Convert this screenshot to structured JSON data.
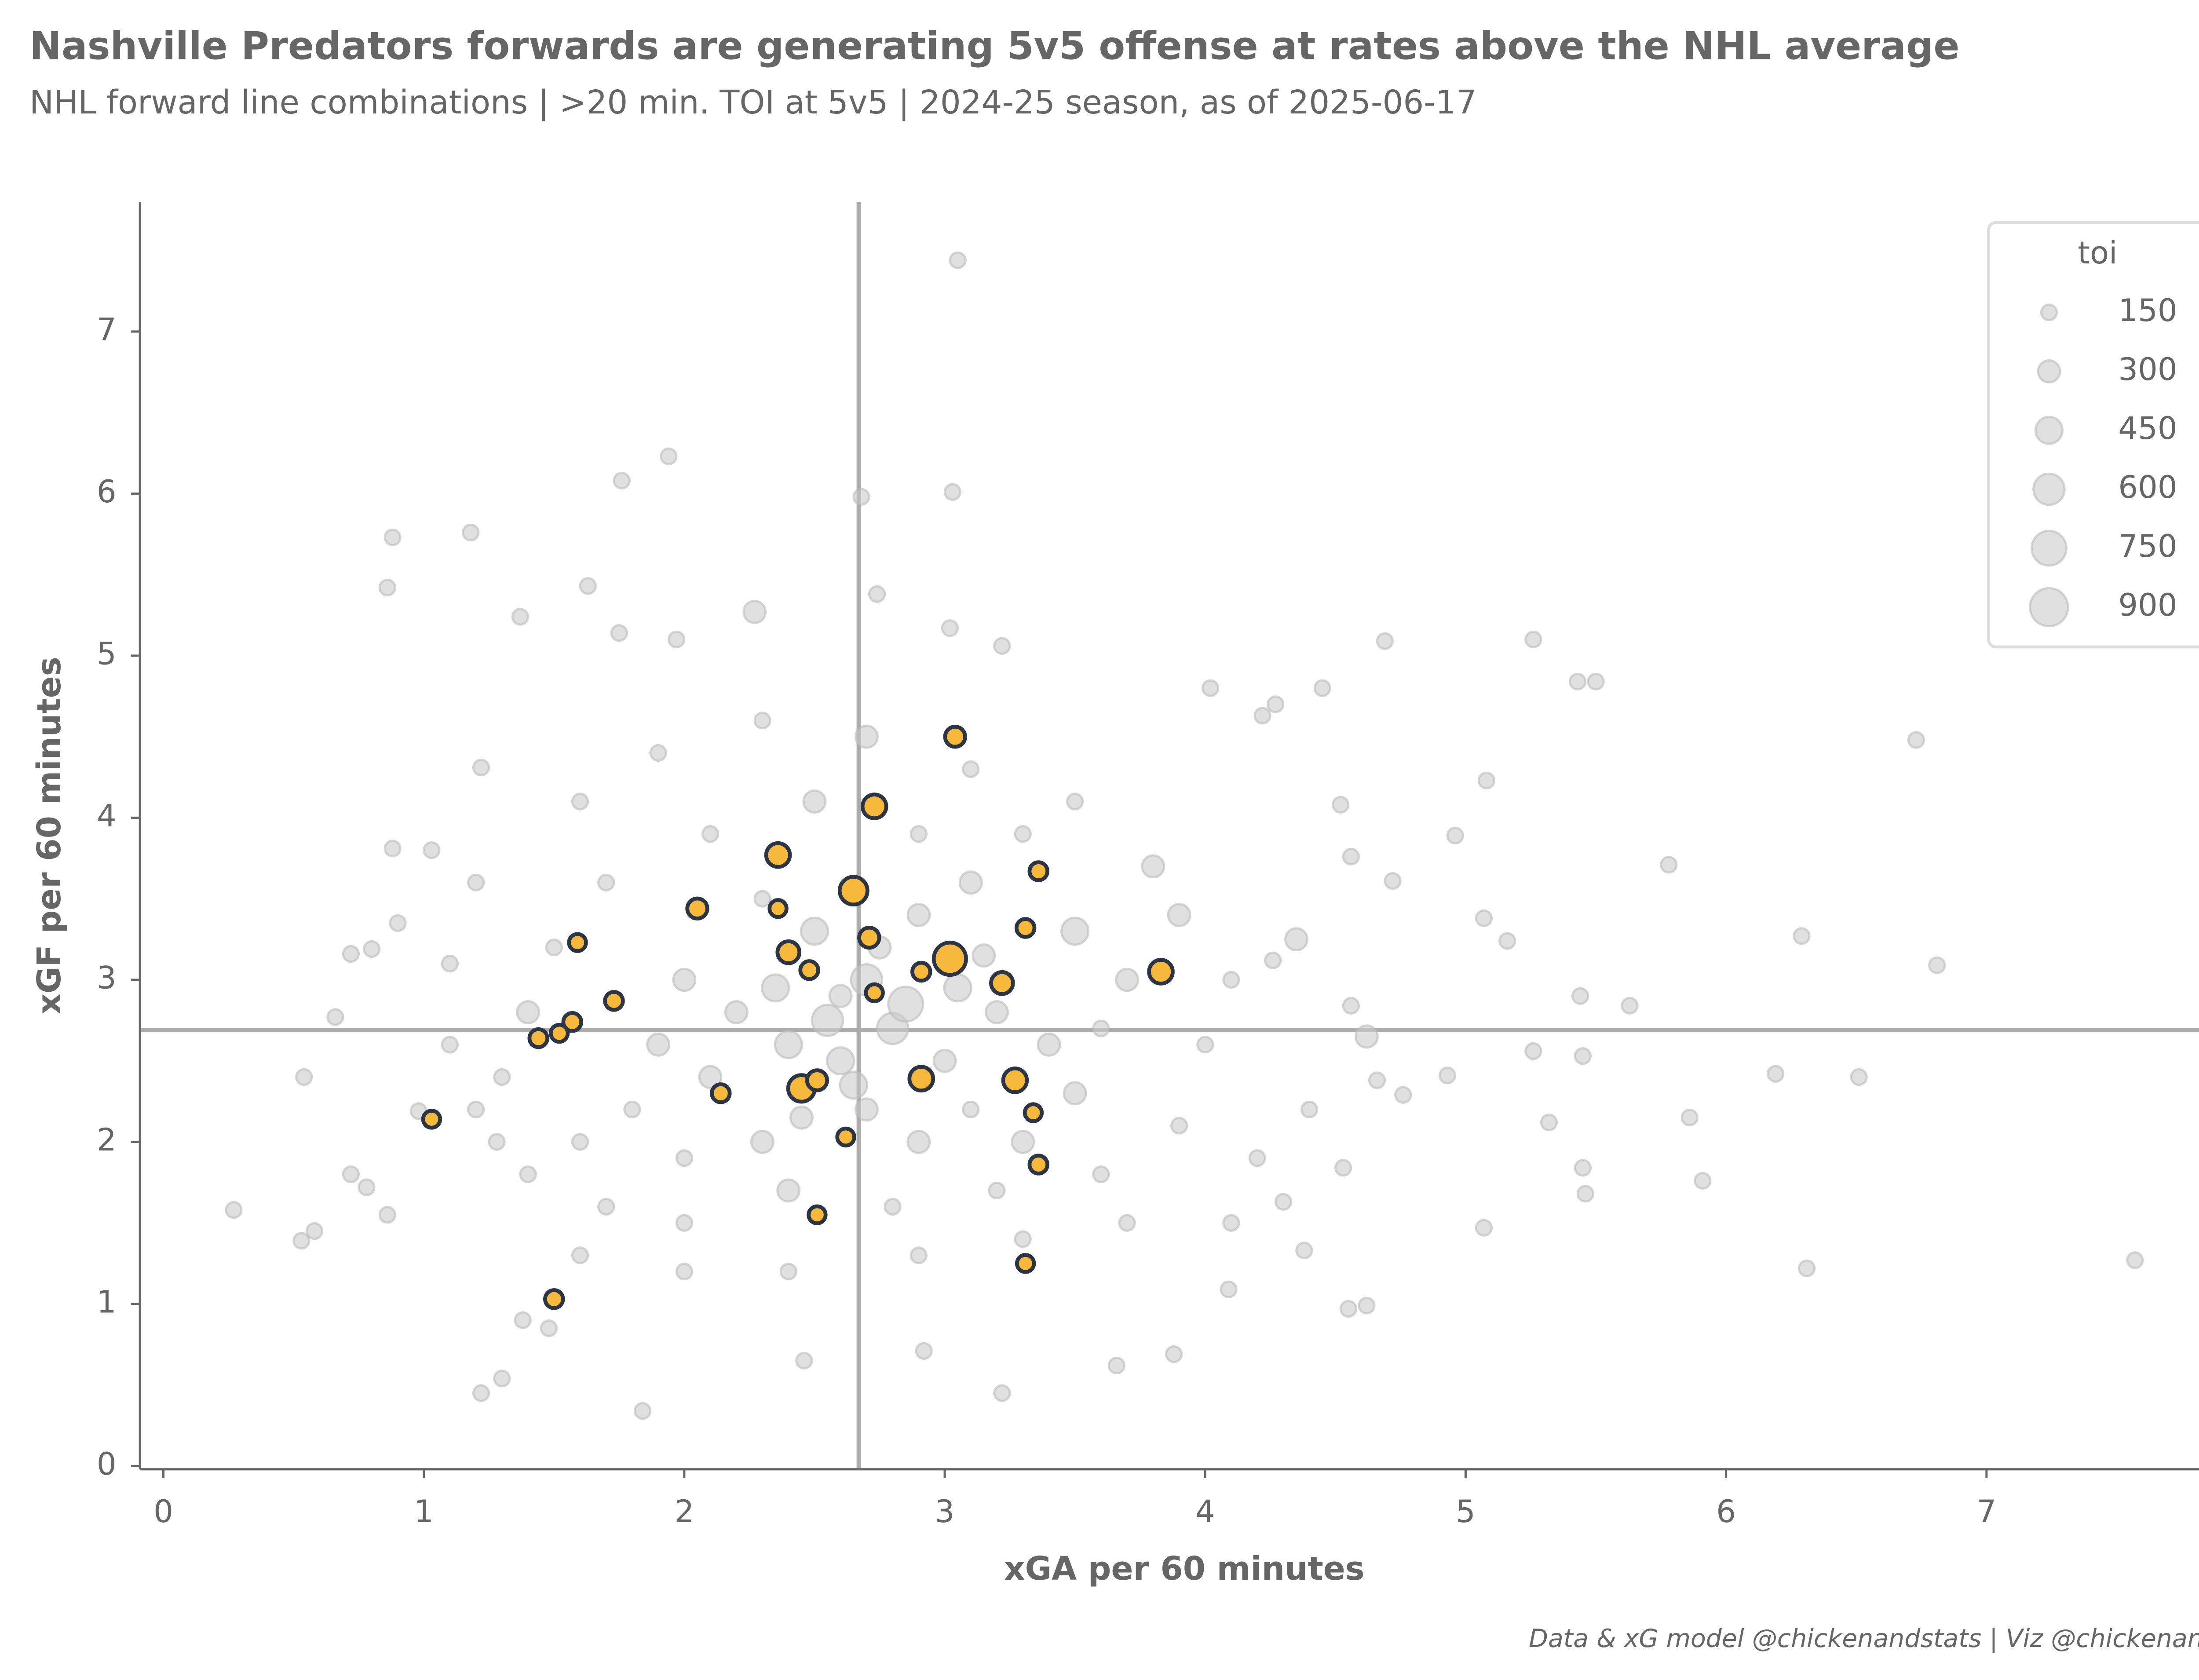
{
  "chart_data": {
    "type": "scatter",
    "title": "Nashville Predators forwards are generating 5v5 offense at rates above the NHL average",
    "subtitle": "NHL forward line combinations | >20 min. TOI at 5v5 | 2024-25 season, as of 2025-06-17",
    "x_label": "xGA per 60 minutes",
    "y_label": "xGF per 60 minutes",
    "caption": "Data & xG model @chickenandstats | Viz @chickenandstats",
    "xlim": [
      -0.09,
      7.93
    ],
    "ylim": [
      -0.02,
      7.8
    ],
    "xticks": [
      0,
      1,
      2,
      3,
      4,
      5,
      6,
      7
    ],
    "yticks": [
      0,
      1,
      2,
      3,
      4,
      5,
      6,
      7
    ],
    "xga_mean": 2.67,
    "xgf_mean": 2.69,
    "reference_color": "#aaaaaa",
    "size_legend": {
      "title": "toi",
      "values": [
        150,
        300,
        450,
        600,
        750,
        900
      ],
      "color": "#cccccc",
      "position": "upper right"
    },
    "series": [
      {
        "color": "#cccccc",
        "edge_color": "#bbbbbb",
        "x": [
          3.05,
          2.68,
          3.03,
          1.76,
          1.94,
          0.88,
          1.18,
          0.86,
          1.63,
          2.74,
          1.37,
          2.27,
          3.02,
          3.22,
          4.69,
          5.26,
          5.43,
          5.5,
          6.73,
          4.45,
          4.02,
          4.22,
          5.08,
          4.96,
          5.78,
          6.29,
          6.81,
          5.07,
          5.16,
          5.44,
          5.63,
          5.45,
          5.26,
          4.93,
          5.32,
          5.86,
          6.19,
          6.51,
          5.45,
          5.46,
          5.91,
          5.07,
          6.31,
          7.57,
          4.55,
          4.62,
          3.66,
          3.88,
          3.22,
          1.84,
          1.22,
          1.3,
          2.46,
          2.92,
          0.27,
          0.53,
          0.58,
          0.54,
          0.66,
          0.72,
          0.8,
          0.9,
          0.88,
          1.03,
          1.22,
          1.75,
          1.97,
          0.98,
          0.72,
          0.78,
          0.86,
          1.28,
          1.48,
          1.38,
          4.56,
          4.62,
          4.66,
          4.76,
          4.53,
          4.3,
          4.09,
          4.38,
          4.26,
          4.35,
          4.56,
          4.72,
          4.52,
          4.27,
          2.0,
          2.2,
          2.4,
          2.6,
          2.8,
          3.0,
          3.2,
          3.4,
          2.5,
          2.9,
          3.1,
          2.3,
          2.1,
          1.9,
          1.8,
          2.0,
          2.3,
          2.7,
          2.9,
          3.1,
          3.3,
          3.5,
          3.6,
          3.7,
          3.5,
          3.3,
          2.9,
          2.5,
          2.1,
          1.7,
          1.5,
          1.4,
          1.3,
          1.6,
          1.7,
          2.0,
          2.4,
          2.8,
          3.2,
          3.6,
          3.9,
          4.0,
          4.1,
          3.9,
          3.8,
          3.5,
          3.1,
          2.7,
          2.3,
          1.9,
          1.6,
          1.2,
          1.1,
          1.1,
          1.2,
          1.4,
          1.6,
          2.0,
          2.4,
          2.9,
          3.3,
          3.7,
          4.1,
          4.2,
          4.4,
          2.6,
          2.7,
          2.85,
          2.55,
          3.05,
          2.35,
          2.75,
          2.65,
          3.15,
          2.45
        ],
        "values": [
          7.44,
          5.98,
          6.01,
          6.08,
          6.23,
          5.73,
          5.76,
          5.42,
          5.43,
          5.38,
          5.24,
          5.27,
          5.17,
          5.06,
          5.09,
          5.1,
          4.84,
          4.84,
          4.48,
          4.8,
          4.8,
          4.63,
          4.23,
          3.89,
          3.71,
          3.27,
          3.09,
          3.38,
          3.24,
          2.9,
          2.84,
          2.53,
          2.56,
          2.41,
          2.12,
          2.15,
          2.42,
          2.4,
          1.84,
          1.68,
          1.76,
          1.47,
          1.22,
          1.27,
          0.97,
          0.99,
          0.62,
          0.69,
          0.45,
          0.34,
          0.45,
          0.54,
          0.65,
          0.71,
          1.58,
          1.39,
          1.45,
          2.4,
          2.77,
          3.16,
          3.19,
          3.35,
          3.81,
          3.8,
          4.31,
          5.14,
          5.1,
          2.19,
          1.8,
          1.72,
          1.55,
          2.0,
          0.85,
          0.9,
          2.84,
          2.65,
          2.38,
          2.29,
          1.84,
          1.63,
          1.09,
          1.33,
          3.12,
          3.25,
          3.76,
          3.61,
          4.08,
          4.7,
          3.0,
          2.8,
          2.6,
          2.9,
          2.7,
          2.5,
          2.8,
          2.6,
          3.3,
          3.4,
          3.6,
          3.5,
          2.4,
          2.6,
          2.2,
          1.9,
          2.0,
          2.2,
          2.0,
          2.2,
          2.0,
          2.3,
          2.7,
          3.0,
          3.3,
          3.9,
          3.9,
          4.1,
          3.9,
          3.6,
          3.2,
          2.8,
          2.4,
          2.0,
          1.6,
          1.5,
          1.7,
          1.6,
          1.7,
          1.8,
          2.1,
          2.6,
          3.0,
          3.4,
          3.7,
          4.1,
          4.3,
          4.5,
          4.6,
          4.4,
          4.1,
          3.6,
          3.1,
          2.6,
          2.2,
          1.8,
          1.3,
          1.2,
          1.2,
          1.3,
          1.4,
          1.5,
          1.5,
          1.9,
          2.2,
          2.5,
          3.0,
          2.85,
          2.75,
          2.95,
          2.95,
          3.2,
          2.35,
          3.15,
          2.15
        ],
        "sizes": [
          150,
          150,
          150,
          150,
          150,
          150,
          150,
          150,
          150,
          150,
          150,
          300,
          150,
          150,
          150,
          150,
          150,
          150,
          150,
          150,
          150,
          150,
          150,
          150,
          150,
          150,
          150,
          150,
          150,
          150,
          150,
          150,
          150,
          150,
          150,
          150,
          150,
          150,
          150,
          150,
          150,
          150,
          150,
          150,
          150,
          150,
          150,
          150,
          150,
          150,
          150,
          150,
          150,
          150,
          150,
          150,
          150,
          150,
          150,
          150,
          150,
          150,
          150,
          150,
          150,
          150,
          150,
          150,
          150,
          150,
          150,
          150,
          150,
          150,
          150,
          300,
          150,
          150,
          150,
          150,
          150,
          150,
          150,
          300,
          150,
          150,
          150,
          150,
          300,
          300,
          450,
          300,
          600,
          300,
          300,
          300,
          450,
          300,
          300,
          150,
          300,
          300,
          150,
          150,
          300,
          300,
          300,
          150,
          300,
          300,
          150,
          300,
          450,
          150,
          150,
          300,
          150,
          150,
          150,
          300,
          150,
          150,
          150,
          150,
          300,
          150,
          150,
          150,
          150,
          150,
          150,
          300,
          300,
          150,
          150,
          300,
          150,
          150,
          150,
          150,
          150,
          150,
          150,
          150,
          150,
          150,
          150,
          150,
          150,
          150,
          150,
          150,
          150,
          450,
          600,
          750,
          600,
          450,
          450,
          300,
          450,
          300,
          300
        ]
      },
      {
        "color": "#f6b93b",
        "edge_color": "#2b3544",
        "x": [
          3.04,
          2.73,
          2.36,
          2.65,
          3.36,
          2.05,
          2.36,
          2.4,
          2.71,
          3.31,
          3.02,
          1.59,
          2.48,
          2.91,
          3.22,
          3.83,
          2.73,
          1.73,
          1.57,
          1.52,
          1.44,
          1.03,
          2.14,
          2.45,
          2.51,
          2.91,
          3.27,
          3.34,
          2.62,
          3.36,
          2.51,
          3.31,
          1.5
        ],
        "values": [
          4.5,
          4.07,
          3.77,
          3.55,
          3.67,
          3.44,
          3.44,
          3.17,
          3.26,
          3.32,
          3.13,
          3.23,
          3.06,
          3.05,
          2.98,
          3.05,
          2.92,
          2.87,
          2.74,
          2.67,
          2.64,
          2.14,
          2.3,
          2.33,
          2.38,
          2.39,
          2.38,
          2.18,
          2.03,
          1.86,
          1.55,
          1.25,
          1.03
        ],
        "sizes": [
          250,
          350,
          350,
          480,
          200,
          250,
          180,
          300,
          250,
          200,
          650,
          180,
          200,
          200,
          300,
          350,
          180,
          200,
          200,
          180,
          200,
          180,
          200,
          440,
          250,
          350,
          350,
          180,
          180,
          200,
          180,
          180,
          200
        ]
      }
    ]
  }
}
